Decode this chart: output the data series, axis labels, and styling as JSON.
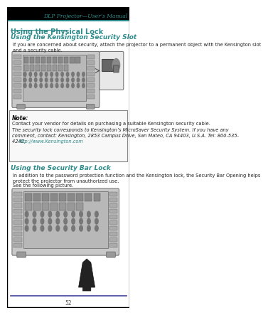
{
  "bg_color": "#ffffff",
  "outer_border_color": "#000000",
  "header_bar_color": "#000000",
  "header_text": "DLP Projector—User’s Manual",
  "header_text_color": "#2e8b8b",
  "header_text_style": "italic",
  "top_rule_color": "#2e8b8b",
  "bottom_rule_color": "#4040a0",
  "section_title": "Using the Physical Lock",
  "section_title_color": "#2e8b8b",
  "subsection1_title": "Using the Kensington Security Slot",
  "subsection1_color": "#2e8b8b",
  "subsection1_style": "italic",
  "body_text1": "If you are concerned about security, attach the projector to a permanent object with the Kensington slot\nand a security cable.",
  "note_title": "Note:",
  "note_text1": "Contact your vendor for details on purchasing a suitable Kensington security cable.",
  "note_text2": "The security lock corresponds to Kensington’s MicroSaver Security System. If you have any\ncomment, contact: Kensington, 2853 Campus Drive, San Mateo, CA 94403, U.S.A. Tel: 800-535-\n4242, http://www.Kensington.com",
  "note_link_color": "#2e8b8b",
  "subsection2_title": "Using the Security Bar Lock",
  "subsection2_color": "#2e8b8b",
  "body_text2": "In addition to the password protection function and the Kensington lock, the Security Bar Opening helps\nprotect the projector from unauthorized use.",
  "body_text3": "See the following picture.",
  "page_number": "52",
  "projector_color": "#d0d0d0",
  "projector_border_color": "#888888",
  "note_box_bg": "#f8f8f8",
  "note_box_border": "#888888"
}
